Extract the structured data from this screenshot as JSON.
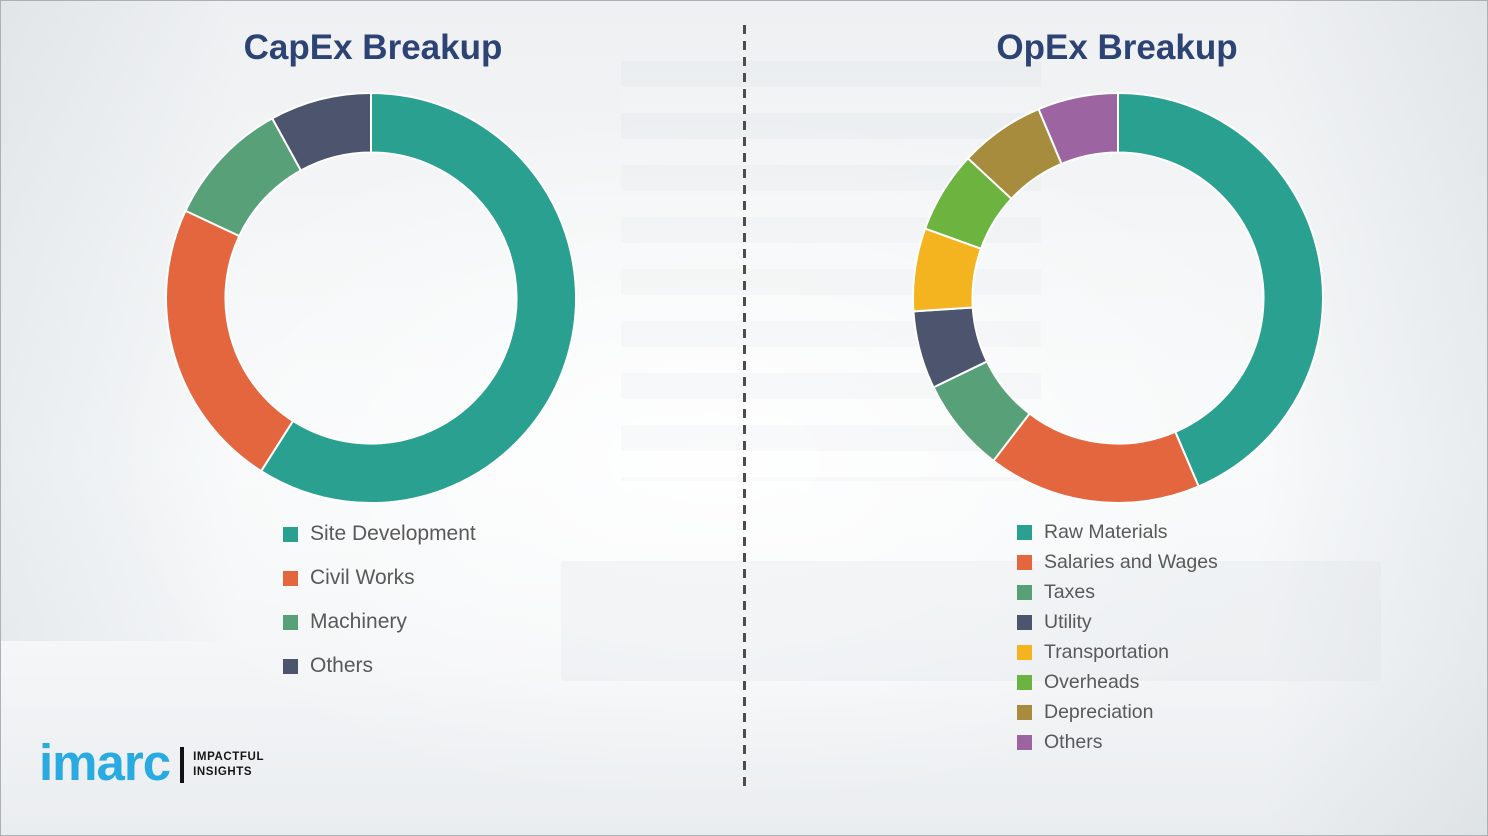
{
  "page": {
    "background_base": "#eef0f2",
    "border_color": "#aab2b6"
  },
  "divider": {
    "style": "vertical-dashed",
    "color": "#4d4d4d"
  },
  "chart_data": [
    {
      "type": "pie",
      "subtype": "donut",
      "title": "CapEx Breakup",
      "title_color": "#2c4373",
      "labels": [
        "Site Development",
        "Civil Works",
        "Machinery",
        "Others"
      ],
      "values": [
        59,
        23,
        10,
        8
      ],
      "colors": [
        "#2aa091",
        "#e4663f",
        "#58a077",
        "#4d556e"
      ],
      "start_angle_deg": 0,
      "direction": "clockwise",
      "inner_radius_ratio": 0.71,
      "legend_position": "below-left",
      "data_labels": "none"
    },
    {
      "type": "pie",
      "subtype": "donut",
      "title": "OpEx Breakup",
      "title_color": "#2c4373",
      "labels": [
        "Raw Materials",
        "Salaries and Wages",
        "Taxes",
        "Utility",
        "Transportation",
        "Overheads",
        "Depreciation",
        "Others"
      ],
      "values": [
        44,
        17,
        7.5,
        6.2,
        6.6,
        6.5,
        6.8,
        6.4
      ],
      "colors": [
        "#2aa091",
        "#e4663f",
        "#58a077",
        "#4d556e",
        "#f3b41f",
        "#6db33f",
        "#a68c3c",
        "#9c64a1"
      ],
      "start_angle_deg": 0,
      "direction": "clockwise",
      "inner_radius_ratio": 0.71,
      "legend_position": "below-left",
      "data_labels": "none"
    }
  ],
  "legend_text_color": "#595959",
  "logo": {
    "brand": "imarc",
    "brand_color": "#29aae1",
    "tagline_line1": "IMPACTFUL",
    "tagline_line2": "INSIGHTS"
  }
}
